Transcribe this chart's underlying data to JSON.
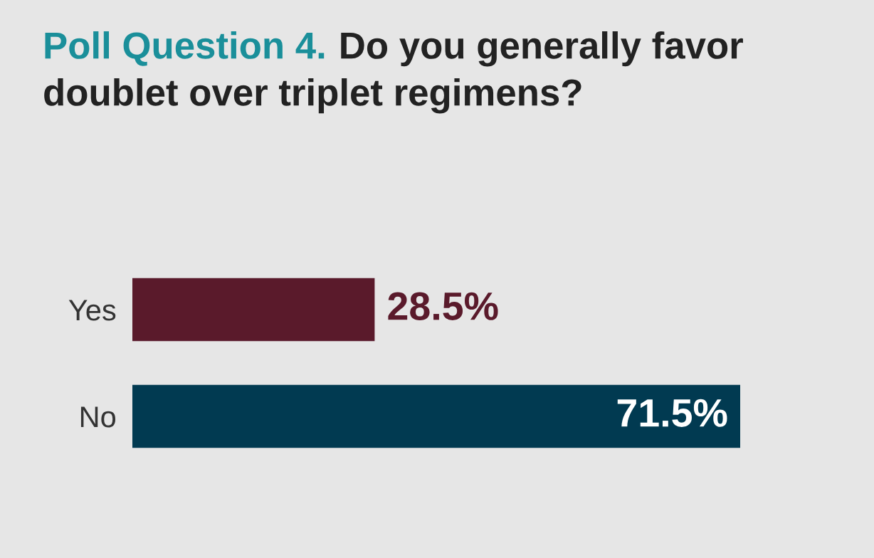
{
  "chart_data": {
    "type": "bar",
    "orientation": "horizontal",
    "title": "Poll Question 4.",
    "subtitle": "Do you generally favor doublet over triplet regimens?",
    "categories": [
      "Yes",
      "No"
    ],
    "values": [
      28.5,
      71.5
    ],
    "colors": [
      "#5a1a2b",
      "#013a51"
    ],
    "value_labels": [
      "28.5%",
      "71.5%"
    ],
    "grid": false,
    "legend": false
  }
}
